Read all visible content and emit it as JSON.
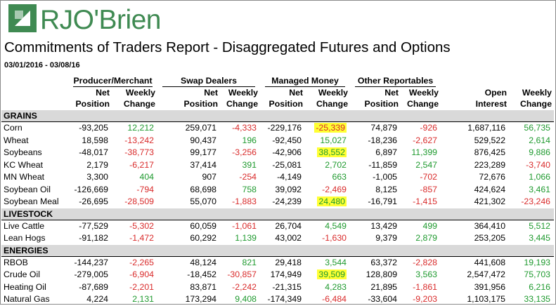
{
  "brand": {
    "name": "RJO'Brien",
    "color": "#3f8a52"
  },
  "report": {
    "title": "Commitments of Traders Report - Disaggregated Futures and Options",
    "date_range": "03/01/2016 - 03/08/16"
  },
  "header": {
    "groups": [
      "Producer/Merchant",
      "Swap Dealers",
      "Managed Money",
      "Other Reportables"
    ],
    "sub": {
      "net_position": [
        "Net",
        "Position"
      ],
      "weekly_change": [
        "Weekly",
        "Change"
      ],
      "open_interest": [
        "Open",
        "Interest"
      ]
    }
  },
  "colors": {
    "positive": "#1f9a2f",
    "negative": "#d92b2b",
    "highlight": "#ffff33",
    "section_bg": "#d9d9d9"
  },
  "sections": [
    {
      "name": "GRAINS",
      "rows": [
        {
          "name": "Corn",
          "values": [
            "-93,205",
            "12,212",
            "259,071",
            "-4,333",
            "-229,176",
            "-25,339",
            "74,879",
            "-926",
            "1,687,116",
            "56,735"
          ],
          "highlight": [
            5
          ]
        },
        {
          "name": "Wheat",
          "values": [
            "18,598",
            "-13,242",
            "90,437",
            "196",
            "-92,450",
            "15,027",
            "-18,236",
            "-2,627",
            "529,522",
            "2,614"
          ],
          "highlight": []
        },
        {
          "name": "Soybeans",
          "values": [
            "-48,017",
            "-38,773",
            "99,177",
            "-3,256",
            "-42,906",
            "38,552",
            "6,897",
            "11,399",
            "876,425",
            "9,886"
          ],
          "highlight": [
            5
          ]
        },
        {
          "name": "KC Wheat",
          "values": [
            "2,179",
            "-6,217",
            "37,414",
            "391",
            "-25,081",
            "2,702",
            "-11,859",
            "2,547",
            "223,289",
            "-3,740"
          ],
          "highlight": []
        },
        {
          "name": "MN Wheat",
          "values": [
            "3,300",
            "404",
            "907",
            "-254",
            "-4,149",
            "663",
            "-1,005",
            "-702",
            "72,676",
            "1,066"
          ],
          "highlight": []
        },
        {
          "name": "Soybean Oil",
          "values": [
            "-126,669",
            "-794",
            "68,698",
            "758",
            "39,092",
            "-2,469",
            "8,125",
            "-857",
            "424,624",
            "3,461"
          ],
          "highlight": []
        },
        {
          "name": "Soybean Meal",
          "values": [
            "-26,695",
            "-28,509",
            "55,070",
            "-1,883",
            "-24,239",
            "24,480",
            "-16,791",
            "-1,415",
            "421,302",
            "-23,246"
          ],
          "highlight": [
            5
          ]
        }
      ]
    },
    {
      "name": "LIVESTOCK",
      "rows": [
        {
          "name": "Live Cattle",
          "values": [
            "-77,529",
            "-5,302",
            "60,059",
            "-1,061",
            "26,704",
            "4,549",
            "13,429",
            "499",
            "364,410",
            "5,512"
          ],
          "highlight": []
        },
        {
          "name": "Lean Hogs",
          "values": [
            "-91,182",
            "-1,472",
            "60,292",
            "1,139",
            "43,002",
            "-1,630",
            "9,379",
            "2,879",
            "253,205",
            "3,445"
          ],
          "highlight": []
        }
      ]
    },
    {
      "name": "ENERGIES",
      "rows": [
        {
          "name": "RBOB",
          "values": [
            "-144,237",
            "-2,265",
            "48,124",
            "821",
            "29,418",
            "3,544",
            "63,372",
            "-2,828",
            "441,608",
            "19,193"
          ],
          "highlight": []
        },
        {
          "name": "Crude Oil",
          "values": [
            "-279,005",
            "-6,904",
            "-18,452",
            "-30,857",
            "174,949",
            "39,509",
            "128,809",
            "3,563",
            "2,547,472",
            "75,703"
          ],
          "highlight": [
            5
          ]
        },
        {
          "name": "Heating Oil",
          "values": [
            "-87,689",
            "-2,201",
            "83,871",
            "-2,242",
            "-21,315",
            "4,283",
            "21,895",
            "-1,861",
            "391,956",
            "6,216"
          ],
          "highlight": []
        },
        {
          "name": "Natural Gas",
          "values": [
            "4,224",
            "2,131",
            "173,294",
            "9,408",
            "-174,349",
            "-6,484",
            "-33,604",
            "-9,203",
            "1,103,175",
            "33,135"
          ],
          "highlight": []
        }
      ]
    }
  ]
}
